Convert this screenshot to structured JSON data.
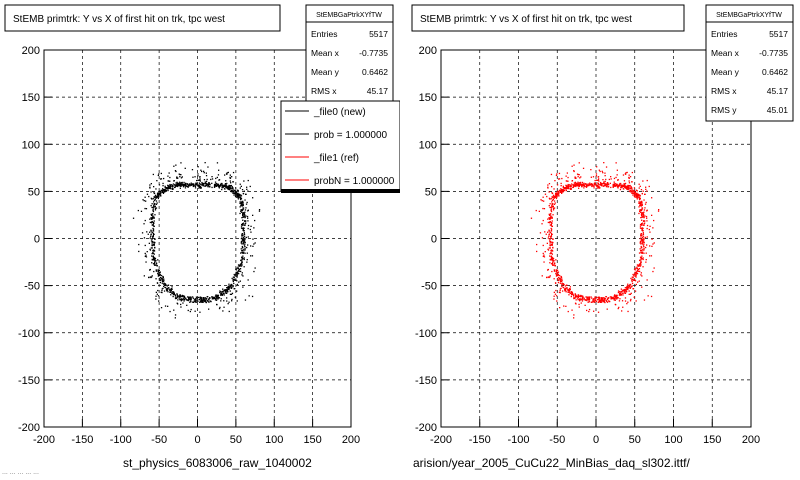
{
  "panels": [
    {
      "id": "left",
      "title": "StEMB primtrk: Y vs X of first hit on trk, tpc west",
      "stats": {
        "name": "StEMBGaPtrkXYfTW",
        "rows": [
          {
            "label": "Entries",
            "value": "5517"
          },
          {
            "label": "Mean x",
            "value": "-0.7735"
          },
          {
            "label": "Mean y",
            "value": "0.6462"
          },
          {
            "label": "RMS x",
            "value": "45.17"
          }
        ]
      },
      "legend": [
        {
          "label": "_file0 (new)",
          "color": "#000000"
        },
        {
          "label": "prob = 1.000000",
          "color": "#000000"
        },
        {
          "label": "_file1 (ref)",
          "color": "#ff0000"
        },
        {
          "label": "probN = 1.000000",
          "color": "#ff0000"
        }
      ],
      "caption": "st_physics_6083006_raw_1040002"
    },
    {
      "id": "right",
      "title": "StEMB primtrk: Y vs X of first hit on trk, tpc west",
      "stats": {
        "name": "StEMBGaPtrkXYfTW",
        "rows": [
          {
            "label": "Entries",
            "value": "5517"
          },
          {
            "label": "Mean x",
            "value": "-0.7735"
          },
          {
            "label": "Mean y",
            "value": "0.6462"
          },
          {
            "label": "RMS x",
            "value": "45.17"
          },
          {
            "label": "RMS y",
            "value": "45.01"
          }
        ]
      },
      "caption": "arision/year_2005_CuCu22_MinBias_daq_sl302.ittf/"
    }
  ],
  "footer_text": "... ... ... ... ...",
  "chart_data": [
    {
      "type": "scatter",
      "title": "StEMB primtrk: Y vs X of first hit on trk, tpc west",
      "xlabel": "",
      "ylabel": "",
      "xlim": [
        -200,
        200
      ],
      "ylim": [
        -200,
        200
      ],
      "xticks": [
        -200,
        -150,
        -100,
        -50,
        0,
        50,
        100,
        150,
        200
      ],
      "yticks": [
        -200,
        -150,
        -100,
        -50,
        0,
        50,
        100,
        150,
        200
      ],
      "grid": true,
      "legend_position": "top-right",
      "series": [
        {
          "name": "_file0 (new)",
          "color": "#000000",
          "shape": "hollow rounded octagon band",
          "mean_x": -0.7735,
          "mean_y": 0.6462,
          "rms_x": 45.17,
          "entries": 5517,
          "x_range": [
            -60,
            60
          ],
          "y_range": [
            -68,
            60
          ],
          "ring_x": [
            -55,
            -40,
            -22,
            0,
            22,
            40,
            55,
            60,
            58,
            45,
            25,
            0,
            -25,
            -45,
            -58,
            -60
          ],
          "ring_y": [
            45,
            55,
            58,
            57,
            58,
            55,
            45,
            20,
            -20,
            -48,
            -62,
            -65,
            -62,
            -48,
            -20,
            20
          ]
        },
        {
          "name": "_file1 (ref)",
          "color": "#ff0000",
          "shape": "hollow rounded octagon band",
          "mean_x": -0.7735,
          "mean_y": 0.6462,
          "rms_x": 45.17,
          "rms_y": 45.01,
          "entries": 5517,
          "x_range": [
            -60,
            60
          ],
          "y_range": [
            -68,
            60
          ],
          "ring_x": [
            -55,
            -40,
            -22,
            0,
            22,
            40,
            55,
            60,
            58,
            45,
            25,
            0,
            -25,
            -45,
            -58,
            -60
          ],
          "ring_y": [
            45,
            55,
            58,
            57,
            58,
            55,
            45,
            20,
            -20,
            -48,
            -62,
            -65,
            -62,
            -48,
            -20,
            20
          ]
        }
      ]
    }
  ]
}
